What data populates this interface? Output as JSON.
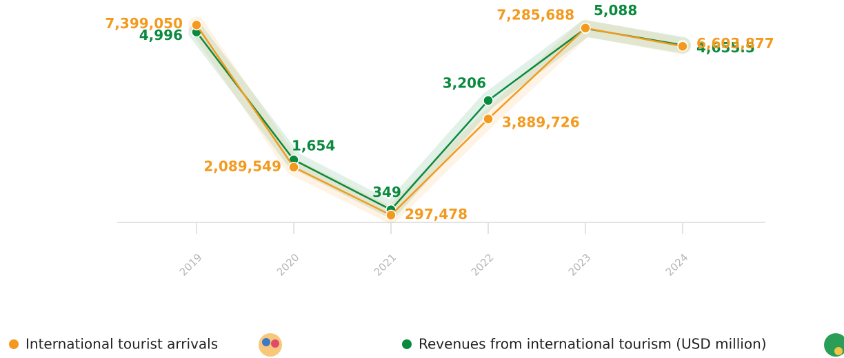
{
  "chart_data": {
    "type": "line",
    "categories": [
      "2019",
      "2020",
      "2021",
      "2022",
      "2023",
      "2024"
    ],
    "series": [
      {
        "name": "International tourist arrivals",
        "color": "#f39a1e",
        "values": [
          7399050,
          2089549,
          297478,
          3889726,
          7285688,
          6603877
        ],
        "value_labels": [
          "7,399,050",
          "2,089,549",
          "297,478",
          "3,889,726",
          "7,285,688",
          "6,603,877"
        ]
      },
      {
        "name": "Revenues from international tourism (USD million)",
        "color": "#0a8a3e",
        "axis": "y2",
        "values": [
          4996,
          1654,
          349,
          3206,
          5088,
          4655.5
        ],
        "value_labels": [
          "4,996",
          "1,654",
          "349",
          "3,206",
          "5,088",
          "4,655.5"
        ]
      }
    ],
    "ylim": [
      0,
      8000000
    ],
    "y2lim": [
      0,
      5600
    ],
    "legend": "bottom"
  }
}
